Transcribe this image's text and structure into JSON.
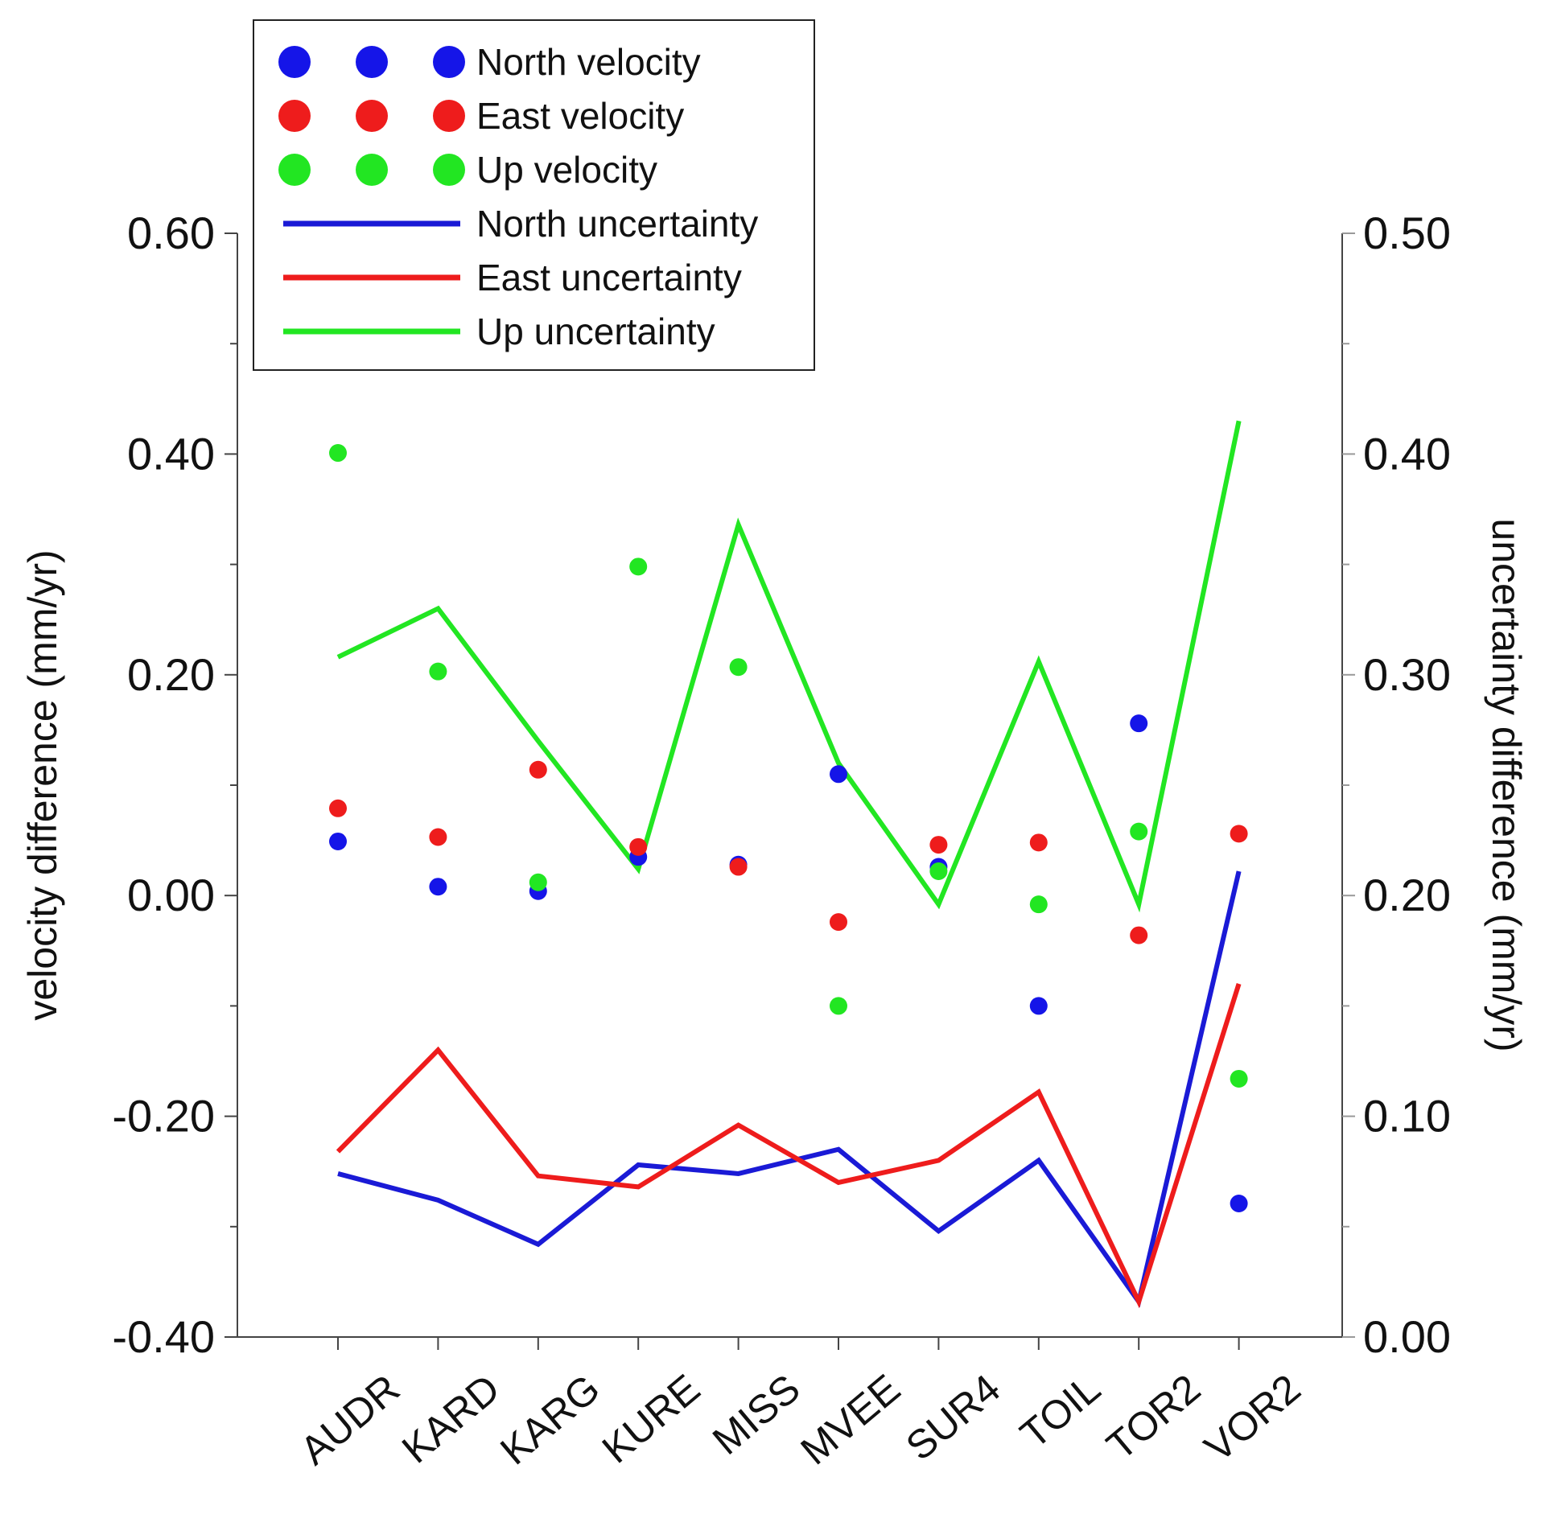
{
  "chart_data": {
    "type": "line",
    "categories": [
      "AUDR",
      "KARD",
      "KARG",
      "KURE",
      "MISS",
      "MVEE",
      "SUR4",
      "TOIL",
      "TOR2",
      "VOR2"
    ],
    "left_axis": {
      "label": "velocity difference (mm/yr)",
      "ylim": [
        -0.4,
        0.6
      ],
      "ticks": [
        -0.4,
        -0.2,
        0.0,
        0.2,
        0.4,
        0.6
      ],
      "tick_labels": [
        "-0.40",
        "-0.20",
        "0.00",
        "0.20",
        "0.40",
        "0.60"
      ]
    },
    "right_axis": {
      "label": "uncertainty difference (mm/yr)",
      "ylim": [
        0.0,
        0.5
      ],
      "ticks": [
        0.0,
        0.1,
        0.2,
        0.3,
        0.4,
        0.5
      ],
      "tick_labels": [
        "0.00",
        "0.10",
        "0.20",
        "0.30",
        "0.40",
        "0.50"
      ]
    },
    "series": [
      {
        "name": "North velocity",
        "kind": "scatter",
        "axis": "left",
        "color": "#1515e8",
        "values": [
          0.049,
          0.008,
          0.004,
          0.035,
          0.028,
          0.11,
          0.026,
          -0.1,
          0.156,
          -0.279
        ]
      },
      {
        "name": "East velocity",
        "kind": "scatter",
        "axis": "left",
        "color": "#ee1c1c",
        "values": [
          0.079,
          0.053,
          0.114,
          0.044,
          0.026,
          -0.024,
          0.046,
          0.048,
          -0.036,
          0.056
        ]
      },
      {
        "name": "Up velocity",
        "kind": "scatter",
        "axis": "left",
        "color": "#22e622",
        "values": [
          0.401,
          0.203,
          0.012,
          0.298,
          0.207,
          -0.1,
          0.022,
          -0.008,
          0.058,
          -0.166
        ]
      },
      {
        "name": "North uncertainty",
        "kind": "line",
        "axis": "right",
        "color": "#1a1ad6",
        "values": [
          0.074,
          0.062,
          0.042,
          0.078,
          0.074,
          0.085,
          0.048,
          0.08,
          0.016,
          0.211
        ]
      },
      {
        "name": "East uncertainty",
        "kind": "line",
        "axis": "right",
        "color": "#ee1c1c",
        "values": [
          0.084,
          0.13,
          0.073,
          0.068,
          0.096,
          0.07,
          0.08,
          0.111,
          0.016,
          0.16
        ]
      },
      {
        "name": "Up uncertainty",
        "kind": "line",
        "axis": "right",
        "color": "#22e622",
        "values": [
          0.308,
          0.33,
          0.27,
          0.212,
          0.368,
          0.26,
          0.196,
          0.306,
          0.196,
          0.415
        ]
      }
    ],
    "legend": {
      "position": "top-left",
      "entries": [
        "North velocity",
        "East velocity",
        "Up velocity",
        "North uncertainty",
        "East uncertainty",
        "Up uncertainty"
      ]
    },
    "grid": false
  }
}
